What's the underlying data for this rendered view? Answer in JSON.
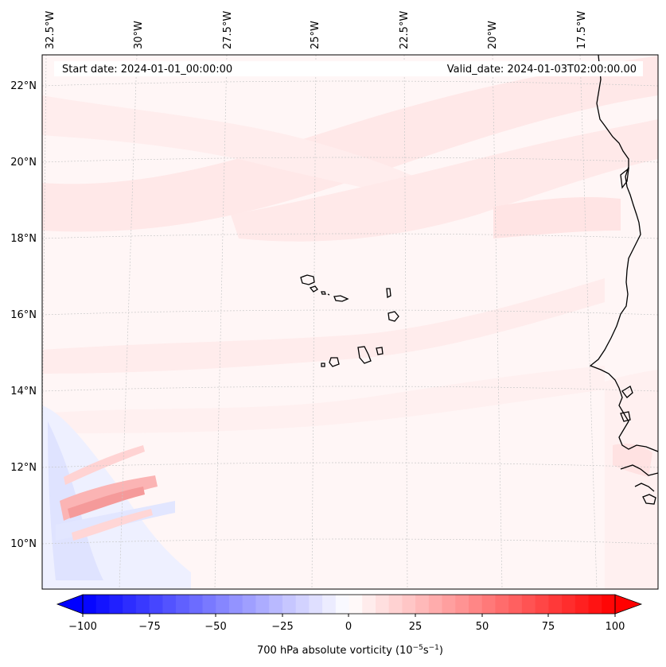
{
  "map": {
    "start_label": "Start date: 2024-01-01_00:00:00",
    "valid_label": "Valid_date: 2024-01-03T02:00:00.00",
    "lon_labels": [
      "32.5°W",
      "30°W",
      "27.5°W",
      "25°W",
      "22.5°W",
      "20°W",
      "17.5°W"
    ],
    "lat_labels": [
      "22°N",
      "20°N",
      "18°N",
      "16°N",
      "14°N",
      "12°N",
      "10°N"
    ],
    "region": "Cape Verde Islands and West African coast"
  },
  "colorbar": {
    "label_prefix": "700 hPa absolute vorticity (10",
    "label_exp1": "−5",
    "label_mid": "s",
    "label_exp2": "−1",
    "label_suffix": ")",
    "ticks": [
      "−100",
      "−75",
      "−50",
      "−25",
      "0",
      "25",
      "50",
      "75",
      "100"
    ],
    "vmin": -100,
    "vmax": 100,
    "colors": {
      "negative": "#0000ff",
      "zero": "#ffffff",
      "positive": "#ff0000"
    }
  }
}
